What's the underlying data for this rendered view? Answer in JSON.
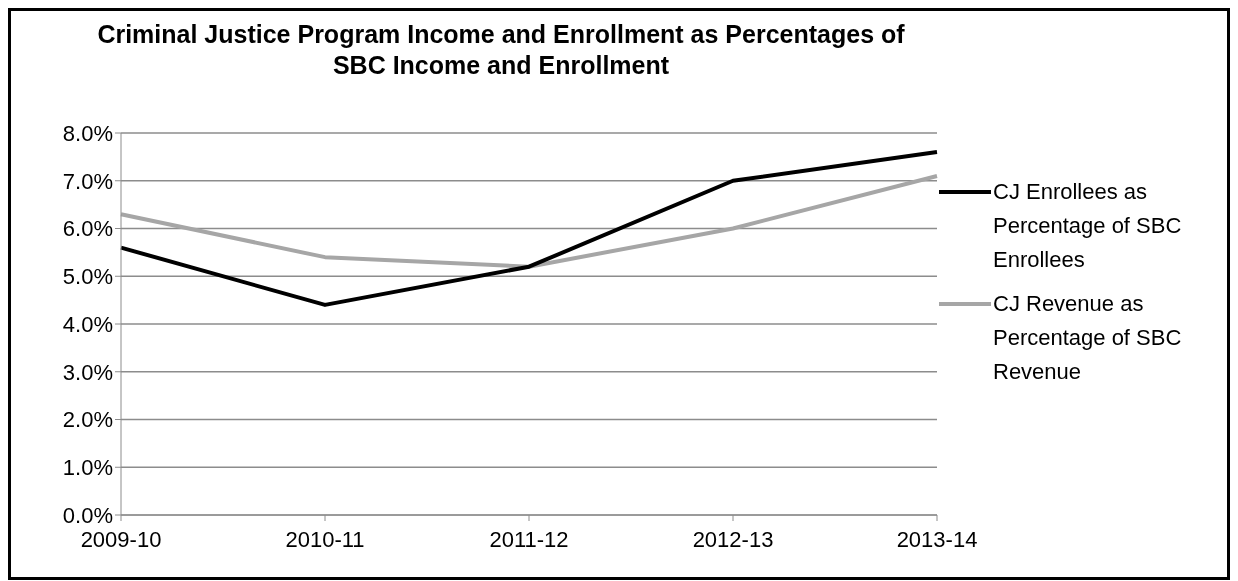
{
  "chart_data": {
    "type": "line",
    "title": "Criminal Justice Program Income and Enrollment as Percentages of SBC Income and Enrollment",
    "categories": [
      "2009-10",
      "2010-11",
      "2011-12",
      "2012-13",
      "2013-14"
    ],
    "series": [
      {
        "name": "CJ Revenue as Percentage of SBC Revenue",
        "color": "#a6a6a6",
        "values": [
          6.3,
          5.4,
          5.2,
          6.0,
          7.1
        ]
      },
      {
        "name": "CJ Enrollees as Percentage of SBC Enrollees",
        "color": "#000000",
        "values": [
          5.6,
          4.4,
          5.2,
          7.0,
          7.6
        ]
      }
    ],
    "ylim": [
      0,
      8
    ],
    "yticks": [
      {
        "value": 0,
        "label": "0.0%"
      },
      {
        "value": 1,
        "label": "1.0%"
      },
      {
        "value": 2,
        "label": "2.0%"
      },
      {
        "value": 3,
        "label": "3.0%"
      },
      {
        "value": 4,
        "label": "4.0%"
      },
      {
        "value": 5,
        "label": "5.0%"
      },
      {
        "value": 6,
        "label": "6.0%"
      },
      {
        "value": 7,
        "label": "7.0%"
      },
      {
        "value": 8,
        "label": "8.0%"
      }
    ],
    "grid": "y",
    "legend": "right",
    "marker": "none",
    "line_style": "solid"
  }
}
